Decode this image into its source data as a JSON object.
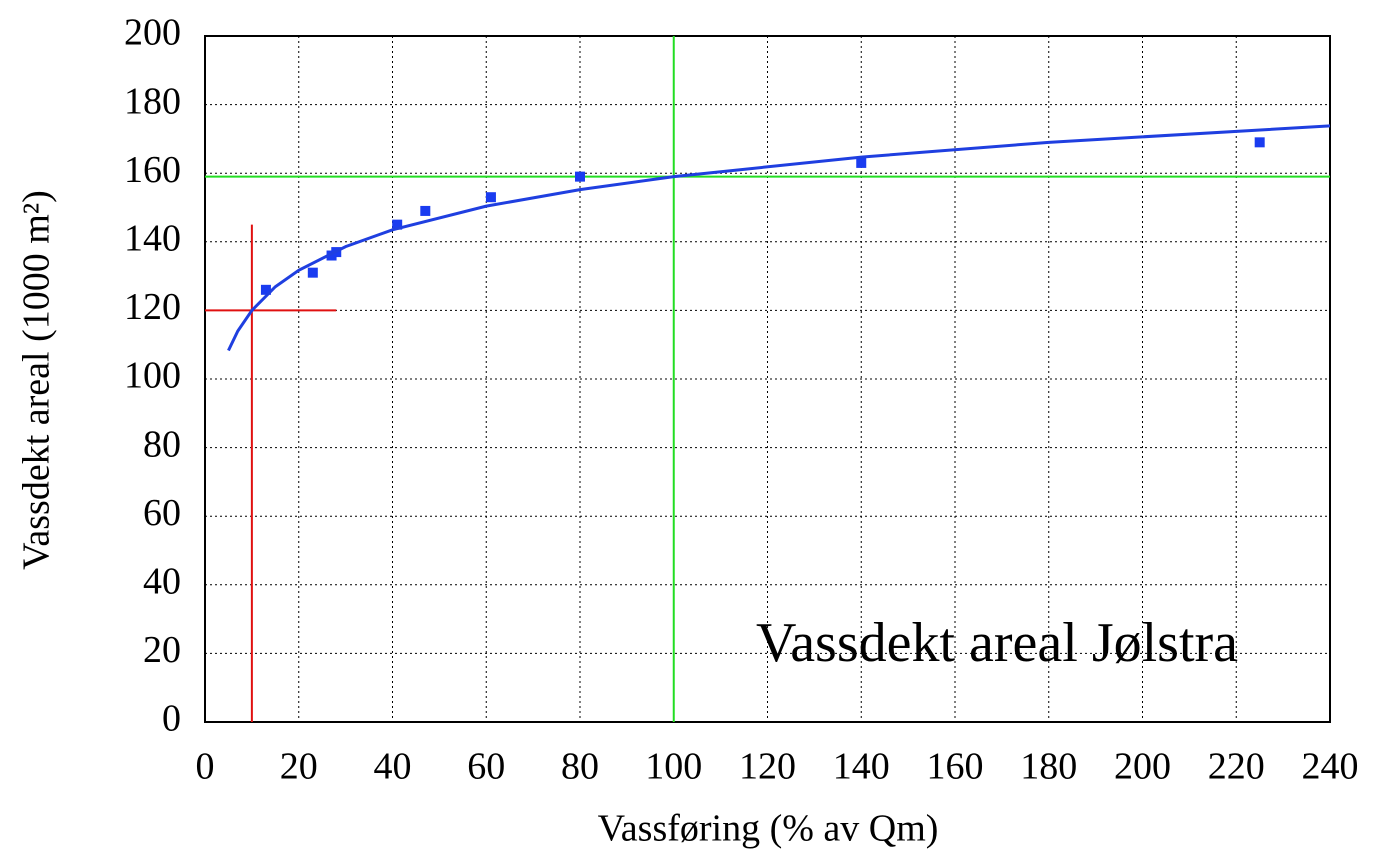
{
  "chart_data": {
    "type": "scatter",
    "annotation": "Vassdekt areal Jølstra",
    "x_label": "Vassføring (% av Qm)",
    "y_label": "Vassdekt areal (1000 m²)",
    "xlim": [
      0,
      240
    ],
    "ylim": [
      0,
      200
    ],
    "xticks": [
      0,
      20,
      40,
      60,
      80,
      100,
      120,
      140,
      160,
      180,
      200,
      220,
      240
    ],
    "yticks": [
      0,
      20,
      40,
      60,
      80,
      100,
      120,
      140,
      160,
      180,
      200
    ],
    "grid": true,
    "series": [
      {
        "type": "scatter",
        "color": "#1a3cf0",
        "x": [
          13,
          23,
          27,
          28,
          41,
          47,
          61,
          80,
          140,
          225
        ],
        "values": [
          126,
          131,
          136,
          137,
          145,
          149,
          153,
          159,
          163,
          169
        ]
      },
      {
        "type": "line",
        "color": "#1f3fe0",
        "x": [
          5,
          7,
          10,
          15,
          20,
          30,
          40,
          60,
          80,
          100,
          140,
          180,
          240
        ],
        "values": [
          108.3,
          114,
          120,
          126.9,
          131.7,
          138.6,
          143.5,
          150.4,
          155.2,
          159,
          164.7,
          169,
          173.8
        ]
      }
    ],
    "reference_lines": [
      {
        "color": "#e01010",
        "x": [
          10,
          10
        ],
        "values": [
          0,
          145
        ]
      },
      {
        "color": "#e01010",
        "x": [
          0,
          28
        ],
        "values": [
          120,
          120
        ]
      },
      {
        "color": "#22dd22",
        "x": [
          100,
          100
        ],
        "values": [
          0,
          200
        ]
      },
      {
        "color": "#22dd22",
        "x": [
          0,
          240
        ],
        "values": [
          159,
          159
        ]
      }
    ]
  }
}
